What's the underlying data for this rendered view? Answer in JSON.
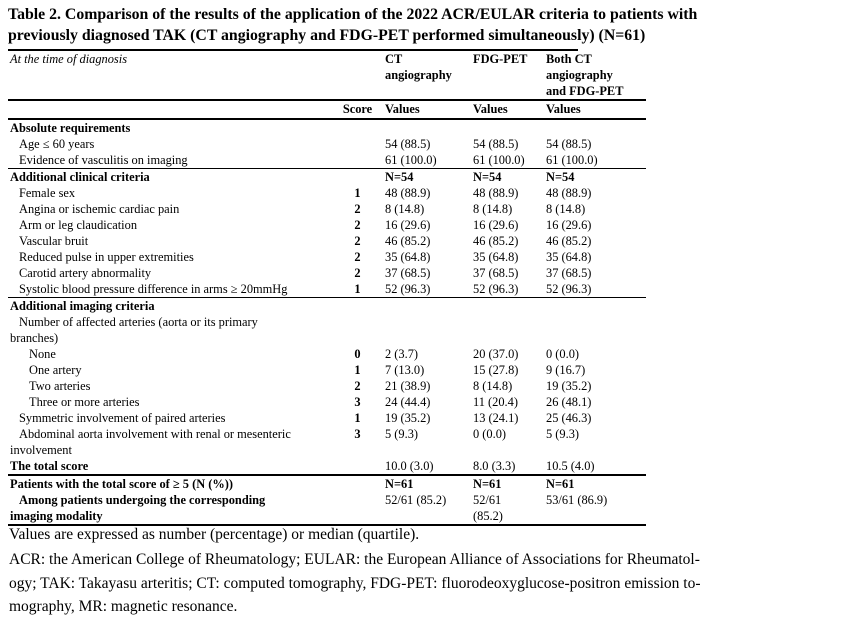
{
  "colors": {
    "text": "#000000",
    "background": "#ffffff"
  },
  "title": {
    "line1": "Table 2. Comparison of the results of the application of the 2022 ACR/EULAR criteria to patients with",
    "line2": "previously diagnosed TAK (CT angiography and FDG-PET performed simultaneously) (N=61)"
  },
  "table": {
    "corner_label": "At the time of diagnosis",
    "score_header": "Score",
    "values_label": "Values",
    "value_columns": [
      "CT\nangiography",
      "FDG-PET",
      "Both CT\nangiography\nand FDG-PET"
    ],
    "rows": [
      {
        "label": "Absolute requirements",
        "indent": 0,
        "bold": true,
        "score": "",
        "values": [
          "",
          "",
          ""
        ]
      },
      {
        "label": "Age ≤ 60 years",
        "indent": 1,
        "score": "",
        "values": [
          "54 (88.5)",
          "54 (88.5)",
          "54 (88.5)"
        ]
      },
      {
        "label": "Evidence of vasculitis on imaging",
        "indent": 1,
        "score": "",
        "values": [
          "61 (100.0)",
          "61 (100.0)",
          "61 (100.0)"
        ]
      },
      {
        "label": "Additional clinical criteria",
        "indent": 0,
        "bold": true,
        "bold_values": true,
        "rule_above": "thin",
        "score": "",
        "values": [
          "N=54",
          "N=54",
          "N=54"
        ]
      },
      {
        "label": "Female sex",
        "indent": 1,
        "score": "1",
        "values": [
          "48 (88.9)",
          "48 (88.9)",
          "48 (88.9)"
        ]
      },
      {
        "label": "Angina or ischemic cardiac pain",
        "indent": 1,
        "score": "2",
        "values": [
          "8 (14.8)",
          "8 (14.8)",
          "8 (14.8)"
        ]
      },
      {
        "label": "Arm or leg claudication",
        "indent": 1,
        "score": "2",
        "values": [
          "16 (29.6)",
          "16 (29.6)",
          "16 (29.6)"
        ]
      },
      {
        "label": "Vascular bruit",
        "indent": 1,
        "score": "2",
        "values": [
          "46 (85.2)",
          "46 (85.2)",
          "46 (85.2)"
        ]
      },
      {
        "label": "Reduced pulse in upper extremities",
        "indent": 1,
        "score": "2",
        "values": [
          "35 (64.8)",
          "35 (64.8)",
          "35 (64.8)"
        ]
      },
      {
        "label": "Carotid artery abnormality",
        "indent": 1,
        "score": "2",
        "values": [
          "37 (68.5)",
          "37 (68.5)",
          "37 (68.5)"
        ]
      },
      {
        "label": "Systolic blood pressure difference in arms ≥ 20mmHg",
        "indent": 1,
        "score": "1",
        "values": [
          "52 (96.3)",
          "52 (96.3)",
          "52 (96.3)"
        ]
      },
      {
        "label": "Additional imaging criteria",
        "indent": 0,
        "bold": true,
        "rule_above": "thin",
        "score": "",
        "values": [
          "",
          "",
          ""
        ]
      },
      {
        "label": "Number of affected arteries (aorta or its primary",
        "indent": 1,
        "score": "",
        "values": [
          "",
          "",
          ""
        ]
      },
      {
        "label": "branches)",
        "indent": 0,
        "score": "",
        "values": [
          "",
          "",
          ""
        ]
      },
      {
        "label": "None",
        "indent": 2,
        "score": "0",
        "values": [
          "2 (3.7)",
          "20 (37.0)",
          "0 (0.0)"
        ]
      },
      {
        "label": "One artery",
        "indent": 2,
        "score": "1",
        "values": [
          "7 (13.0)",
          "15 (27.8)",
          "9 (16.7)"
        ]
      },
      {
        "label": "Two arteries",
        "indent": 2,
        "score": "2",
        "values": [
          "21 (38.9)",
          "8 (14.8)",
          "19 (35.2)"
        ]
      },
      {
        "label": "Three or more arteries",
        "indent": 2,
        "score": "3",
        "values": [
          "24 (44.4)",
          "11 (20.4)",
          "26 (48.1)"
        ]
      },
      {
        "label": "Symmetric involvement of paired arteries",
        "indent": 1,
        "score": "1",
        "values": [
          "19 (35.2)",
          "13 (24.1)",
          "25 (46.3)"
        ]
      },
      {
        "label": "Abdominal aorta involvement with renal or mesenteric",
        "indent": 1,
        "score": "3",
        "values": [
          "5 (9.3)",
          "0 (0.0)",
          "5 (9.3)"
        ]
      },
      {
        "label": "involvement",
        "indent": 0,
        "score": "",
        "values": [
          "",
          "",
          ""
        ]
      },
      {
        "label": "The total score",
        "indent": 0,
        "bold": true,
        "score": "",
        "values": [
          "10.0 (3.0)",
          "8.0 (3.3)",
          "10.5 (4.0)"
        ]
      },
      {
        "label": "Patients with the total score of ≥ 5 (N (%))",
        "indent": 0,
        "bold": true,
        "bold_values": true,
        "rule_above": "thick",
        "score": "",
        "values": [
          "N=61",
          "N=61",
          "N=61"
        ]
      },
      {
        "label": "Among patients undergoing the corresponding",
        "indent": 1,
        "bold": true,
        "score": "",
        "values": [
          "52/61 (85.2)",
          "52/61",
          "53/61 (86.9)"
        ]
      },
      {
        "label": "imaging modality",
        "indent": 0,
        "bold": true,
        "score": "",
        "values": [
          "",
          "(85.2)",
          ""
        ]
      }
    ]
  },
  "footnotes": {
    "values_note": "Values are expressed as number (percentage) or median (quartile).",
    "abbrev_lines": [
      "ACR: the American College of Rheumatology; EULAR: the European Alliance of Associations for Rheumatol-",
      "ogy; TAK: Takayasu arteritis; CT: computed tomography, FDG-PET: fluorodeoxyglucose-positron emission to-",
      "mography, MR: magnetic resonance."
    ]
  }
}
